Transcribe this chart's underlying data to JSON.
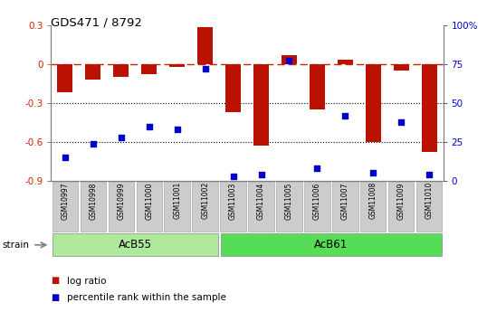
{
  "title": "GDS471 / 8792",
  "samples": [
    "GSM10997",
    "GSM10998",
    "GSM10999",
    "GSM11000",
    "GSM11001",
    "GSM11002",
    "GSM11003",
    "GSM11004",
    "GSM11005",
    "GSM11006",
    "GSM11007",
    "GSM11008",
    "GSM11009",
    "GSM11010"
  ],
  "log_ratio": [
    -0.22,
    -0.12,
    -0.1,
    -0.08,
    -0.02,
    0.28,
    -0.37,
    -0.63,
    0.07,
    -0.35,
    0.03,
    -0.6,
    -0.05,
    -0.68
  ],
  "percentile_rank": [
    15,
    24,
    28,
    35,
    33,
    72,
    3,
    4,
    77,
    8,
    42,
    5,
    38,
    4
  ],
  "groups": [
    {
      "label": "AcB55",
      "start": 0,
      "end": 5,
      "color": "#aee89a"
    },
    {
      "label": "AcB61",
      "start": 6,
      "end": 13,
      "color": "#55dd55"
    }
  ],
  "bar_color": "#bb1100",
  "dot_color": "#0000cc",
  "ylim_left": [
    -0.9,
    0.3
  ],
  "ylim_right": [
    0,
    100
  ],
  "y_ticks_left": [
    -0.9,
    -0.6,
    -0.3,
    0.0,
    0.3
  ],
  "y_ticks_right": [
    0,
    25,
    50,
    75,
    100
  ],
  "y_tick_labels_right": [
    "0",
    "25",
    "50",
    "75",
    "100%"
  ],
  "hline_zero_color": "#cc2200",
  "hline_zero_style": "-.",
  "hline_dotted_values": [
    -0.3,
    -0.6
  ],
  "hline_dotted_color": "black",
  "hline_dotted_style": ":",
  "legend_log_ratio_color": "#bb1100",
  "legend_percentile_color": "#0000cc",
  "strain_label": "strain",
  "tick_bg_color": "#cccccc",
  "background_color": "#ffffff"
}
